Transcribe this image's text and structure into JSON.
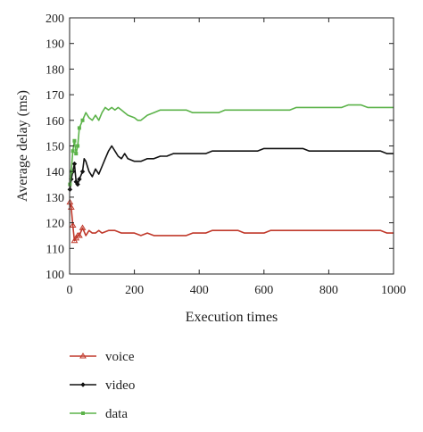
{
  "chart_data": {
    "type": "line",
    "title": "",
    "xlabel": "Execution times",
    "ylabel": "Average delay (ms)",
    "xlim": [
      0,
      1000
    ],
    "ylim": [
      100,
      200
    ],
    "xticks": [
      0,
      200,
      400,
      600,
      800,
      1000
    ],
    "yticks": [
      100,
      110,
      120,
      130,
      140,
      150,
      160,
      170,
      180,
      190,
      200
    ],
    "grid": false,
    "legend_position": "below",
    "series": [
      {
        "name": "voice",
        "color": "#c0392b",
        "marker": "triangle",
        "points": [
          [
            1,
            128
          ],
          [
            5,
            126
          ],
          [
            10,
            119
          ],
          [
            15,
            113
          ],
          [
            20,
            114
          ],
          [
            25,
            115
          ],
          [
            30,
            115
          ],
          [
            40,
            118
          ],
          [
            50,
            115
          ],
          [
            60,
            117
          ],
          [
            70,
            116
          ],
          [
            80,
            116
          ],
          [
            90,
            117
          ],
          [
            100,
            116
          ],
          [
            120,
            117
          ],
          [
            140,
            117
          ],
          [
            160,
            116
          ],
          [
            180,
            116
          ],
          [
            200,
            116
          ],
          [
            220,
            115
          ],
          [
            240,
            116
          ],
          [
            260,
            115
          ],
          [
            280,
            115
          ],
          [
            300,
            115
          ],
          [
            320,
            115
          ],
          [
            340,
            115
          ],
          [
            360,
            115
          ],
          [
            380,
            116
          ],
          [
            400,
            116
          ],
          [
            420,
            116
          ],
          [
            440,
            117
          ],
          [
            460,
            117
          ],
          [
            480,
            117
          ],
          [
            500,
            117
          ],
          [
            520,
            117
          ],
          [
            540,
            116
          ],
          [
            560,
            116
          ],
          [
            580,
            116
          ],
          [
            600,
            116
          ],
          [
            620,
            117
          ],
          [
            640,
            117
          ],
          [
            660,
            117
          ],
          [
            680,
            117
          ],
          [
            700,
            117
          ],
          [
            720,
            117
          ],
          [
            740,
            117
          ],
          [
            760,
            117
          ],
          [
            780,
            117
          ],
          [
            800,
            117
          ],
          [
            820,
            117
          ],
          [
            840,
            117
          ],
          [
            860,
            117
          ],
          [
            880,
            117
          ],
          [
            900,
            117
          ],
          [
            920,
            117
          ],
          [
            940,
            117
          ],
          [
            960,
            117
          ],
          [
            980,
            116
          ],
          [
            1000,
            116
          ]
        ]
      },
      {
        "name": "video",
        "color": "#111111",
        "marker": "diamond",
        "points": [
          [
            1,
            133
          ],
          [
            5,
            137
          ],
          [
            10,
            140
          ],
          [
            15,
            143
          ],
          [
            20,
            136
          ],
          [
            25,
            135
          ],
          [
            30,
            137
          ],
          [
            40,
            140
          ],
          [
            45,
            145
          ],
          [
            50,
            144
          ],
          [
            60,
            140
          ],
          [
            70,
            138
          ],
          [
            80,
            141
          ],
          [
            90,
            139
          ],
          [
            100,
            142
          ],
          [
            110,
            145
          ],
          [
            120,
            148
          ],
          [
            130,
            150
          ],
          [
            140,
            148
          ],
          [
            150,
            146
          ],
          [
            160,
            145
          ],
          [
            170,
            147
          ],
          [
            180,
            145
          ],
          [
            200,
            144
          ],
          [
            220,
            144
          ],
          [
            240,
            145
          ],
          [
            260,
            145
          ],
          [
            280,
            146
          ],
          [
            300,
            146
          ],
          [
            320,
            147
          ],
          [
            340,
            147
          ],
          [
            360,
            147
          ],
          [
            380,
            147
          ],
          [
            400,
            147
          ],
          [
            420,
            147
          ],
          [
            440,
            148
          ],
          [
            460,
            148
          ],
          [
            480,
            148
          ],
          [
            500,
            148
          ],
          [
            520,
            148
          ],
          [
            540,
            148
          ],
          [
            560,
            148
          ],
          [
            580,
            148
          ],
          [
            600,
            149
          ],
          [
            620,
            149
          ],
          [
            640,
            149
          ],
          [
            660,
            149
          ],
          [
            680,
            149
          ],
          [
            700,
            149
          ],
          [
            720,
            149
          ],
          [
            740,
            148
          ],
          [
            760,
            148
          ],
          [
            780,
            148
          ],
          [
            800,
            148
          ],
          [
            820,
            148
          ],
          [
            840,
            148
          ],
          [
            860,
            148
          ],
          [
            880,
            148
          ],
          [
            900,
            148
          ],
          [
            920,
            148
          ],
          [
            940,
            148
          ],
          [
            960,
            148
          ],
          [
            980,
            147
          ],
          [
            1000,
            147
          ]
        ]
      },
      {
        "name": "data",
        "color": "#5cb34a",
        "marker": "square",
        "points": [
          [
            1,
            135
          ],
          [
            5,
            140
          ],
          [
            10,
            148
          ],
          [
            15,
            152
          ],
          [
            20,
            147
          ],
          [
            25,
            150
          ],
          [
            30,
            157
          ],
          [
            40,
            160
          ],
          [
            50,
            163
          ],
          [
            60,
            161
          ],
          [
            70,
            160
          ],
          [
            80,
            162
          ],
          [
            90,
            160
          ],
          [
            100,
            163
          ],
          [
            110,
            165
          ],
          [
            120,
            164
          ],
          [
            130,
            165
          ],
          [
            140,
            164
          ],
          [
            150,
            165
          ],
          [
            160,
            164
          ],
          [
            170,
            163
          ],
          [
            180,
            162
          ],
          [
            200,
            161
          ],
          [
            210,
            160
          ],
          [
            220,
            160
          ],
          [
            240,
            162
          ],
          [
            260,
            163
          ],
          [
            280,
            164
          ],
          [
            300,
            164
          ],
          [
            320,
            164
          ],
          [
            340,
            164
          ],
          [
            360,
            164
          ],
          [
            380,
            163
          ],
          [
            400,
            163
          ],
          [
            420,
            163
          ],
          [
            440,
            163
          ],
          [
            460,
            163
          ],
          [
            480,
            164
          ],
          [
            500,
            164
          ],
          [
            520,
            164
          ],
          [
            540,
            164
          ],
          [
            560,
            164
          ],
          [
            580,
            164
          ],
          [
            600,
            164
          ],
          [
            620,
            164
          ],
          [
            640,
            164
          ],
          [
            660,
            164
          ],
          [
            680,
            164
          ],
          [
            700,
            165
          ],
          [
            720,
            165
          ],
          [
            740,
            165
          ],
          [
            760,
            165
          ],
          [
            780,
            165
          ],
          [
            800,
            165
          ],
          [
            820,
            165
          ],
          [
            840,
            165
          ],
          [
            860,
            166
          ],
          [
            880,
            166
          ],
          [
            900,
            166
          ],
          [
            920,
            165
          ],
          [
            940,
            165
          ],
          [
            960,
            165
          ],
          [
            980,
            165
          ],
          [
            1000,
            165
          ]
        ]
      }
    ]
  }
}
